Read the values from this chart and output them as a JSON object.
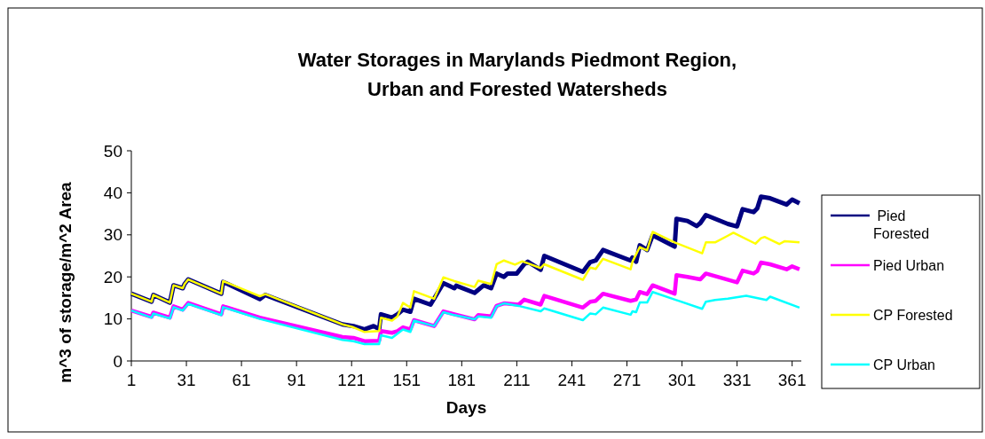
{
  "chart_data": {
    "type": "line",
    "title": "Water Storages in Marylands Piedmont Region,\nUrban and Forested Watersheds",
    "xlabel": "Days",
    "ylabel": "m^3 of storage/m^2 Area",
    "xlim": [
      1,
      366
    ],
    "xticks": [
      1,
      31,
      61,
      91,
      121,
      151,
      181,
      211,
      241,
      271,
      301,
      331,
      361
    ],
    "ylim": [
      0,
      50
    ],
    "yticks": [
      0,
      10,
      20,
      30,
      40,
      50
    ],
    "grid": false,
    "legend": "right",
    "marker": "none",
    "line_style": "solid",
    "series": [
      {
        "name": " Pied\nForested",
        "color": "#000080",
        "x": [
          1,
          12,
          13,
          22,
          24,
          29,
          30,
          32,
          50,
          51,
          71,
          74,
          116,
          122,
          128,
          133,
          136,
          137,
          143,
          146,
          149,
          153,
          155,
          164,
          171,
          177,
          178,
          188,
          193,
          197,
          200,
          204,
          206,
          211,
          215,
          217,
          224,
          226,
          247,
          251,
          254,
          258,
          273,
          274,
          276,
          278,
          282,
          285,
          297,
          298,
          304,
          309,
          311,
          314,
          326,
          331,
          334,
          340,
          342,
          344,
          349,
          358,
          361,
          365
        ],
        "values": [
          16.0,
          14.1,
          15.7,
          13.9,
          18.0,
          17.3,
          18.3,
          19.4,
          16.0,
          18.8,
          14.7,
          15.7,
          8.7,
          8.3,
          7.5,
          8.3,
          7.6,
          11.1,
          10.3,
          11.1,
          12.2,
          11.7,
          14.8,
          13.4,
          18.5,
          17.3,
          17.9,
          16.2,
          18.0,
          17.3,
          20.8,
          20.0,
          20.8,
          20.8,
          23.0,
          23.6,
          21.7,
          25.0,
          21.2,
          23.5,
          23.9,
          26.4,
          23.9,
          24.6,
          23.6,
          27.5,
          26.4,
          29.9,
          27.2,
          33.8,
          33.3,
          32.1,
          32.8,
          34.7,
          32.6,
          32.0,
          36.1,
          35.4,
          36.3,
          39.1,
          38.7,
          37.2,
          38.4,
          37.5
        ]
      },
      {
        "name": "Pied Urban",
        "color": "#ff00ff",
        "x": [
          1,
          12,
          13,
          22,
          24,
          29,
          32,
          50,
          51,
          71,
          116,
          122,
          128,
          136,
          137,
          143,
          146,
          149,
          153,
          155,
          166,
          171,
          177,
          188,
          190,
          197,
          200,
          204,
          212,
          215,
          224,
          226,
          247,
          251,
          254,
          258,
          273,
          276,
          278,
          282,
          285,
          297,
          298,
          304,
          311,
          314,
          331,
          334,
          340,
          342,
          344,
          349,
          358,
          361,
          365
        ],
        "values": [
          12.0,
          10.5,
          11.5,
          10.3,
          13.0,
          12.2,
          13.8,
          11.1,
          13.0,
          10.3,
          5.7,
          5.5,
          4.7,
          4.8,
          7.1,
          6.7,
          7.1,
          8.0,
          7.5,
          9.7,
          8.3,
          11.8,
          11.1,
          9.9,
          10.9,
          10.6,
          13.1,
          13.7,
          13.4,
          14.6,
          13.4,
          15.5,
          12.7,
          14.1,
          14.3,
          16.0,
          14.3,
          14.6,
          16.4,
          15.9,
          18.0,
          16.0,
          20.4,
          20.0,
          19.4,
          20.8,
          18.7,
          21.5,
          20.8,
          21.4,
          23.4,
          23.0,
          21.8,
          22.5,
          21.8
        ]
      },
      {
        "name": "CP Forested",
        "color": "#ffff00",
        "x": [
          1,
          12,
          13,
          22,
          24,
          29,
          30,
          32,
          50,
          51,
          71,
          74,
          116,
          122,
          128,
          136,
          137,
          143,
          146,
          149,
          153,
          155,
          166,
          171,
          177,
          188,
          190,
          197,
          200,
          204,
          210,
          214,
          224,
          226,
          247,
          250,
          251,
          254,
          258,
          273,
          274,
          278,
          282,
          285,
          297,
          312,
          314,
          319,
          326,
          329,
          341,
          344,
          346,
          354,
          357,
          365
        ],
        "values": [
          16.0,
          14.1,
          15.7,
          13.9,
          18.0,
          17.3,
          18.3,
          19.4,
          16.0,
          19.0,
          15.4,
          15.9,
          8.7,
          8.0,
          6.9,
          7.1,
          10.3,
          9.6,
          10.6,
          13.8,
          12.7,
          16.6,
          14.8,
          19.9,
          19.0,
          17.6,
          19.1,
          18.3,
          23.0,
          23.9,
          22.9,
          23.7,
          22.1,
          23.0,
          19.3,
          21.5,
          22.2,
          21.9,
          24.3,
          21.8,
          23.6,
          27.1,
          26.3,
          30.7,
          28.2,
          25.6,
          28.2,
          28.2,
          29.8,
          30.5,
          27.9,
          29.2,
          29.5,
          27.8,
          28.5,
          28.2
        ]
      },
      {
        "name": "CP Urban",
        "color": "#00ffff",
        "x": [
          1,
          12,
          13,
          22,
          24,
          29,
          32,
          50,
          51,
          71,
          116,
          122,
          128,
          136,
          137,
          143,
          149,
          153,
          155,
          166,
          171,
          177,
          188,
          190,
          197,
          200,
          204,
          212,
          224,
          226,
          247,
          251,
          254,
          258,
          273,
          274,
          276,
          278,
          282,
          285,
          312,
          314,
          319,
          326,
          336,
          347,
          349,
          365
        ],
        "values": [
          12.0,
          10.3,
          11.3,
          10.1,
          12.8,
          12.0,
          13.6,
          10.9,
          12.8,
          10.0,
          5.0,
          4.7,
          4.0,
          4.0,
          6.1,
          5.5,
          7.5,
          6.9,
          9.6,
          8.3,
          11.6,
          10.9,
          9.9,
          10.6,
          10.3,
          13.0,
          13.7,
          13.1,
          11.8,
          12.5,
          9.7,
          11.3,
          11.1,
          12.7,
          11.0,
          11.8,
          11.6,
          13.9,
          13.9,
          16.4,
          12.4,
          14.1,
          14.5,
          14.8,
          15.5,
          14.5,
          15.3,
          12.7
        ]
      }
    ]
  }
}
